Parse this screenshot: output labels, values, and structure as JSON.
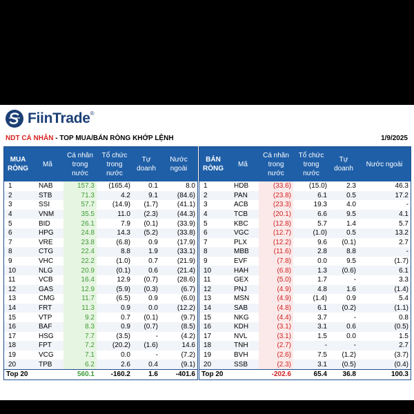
{
  "brand": {
    "name": "FiinTrade",
    "trademark": "®"
  },
  "header": {
    "subtitle_red": "NDT CÁ NHÂN",
    "subtitle_rest": " - TOP MUA/BÁN RÒNG KHỚP LỆNH",
    "date": "1/9/2025"
  },
  "colors": {
    "header_blue": "#1f5fa8",
    "green": "#3e9a37",
    "red": "#d02020",
    "brand_navy": "#1b3f75"
  },
  "buy": {
    "headers": {
      "side": "MUA RÒNG",
      "code": "Mã",
      "individual": "Cá nhân trong nước",
      "institution": "Tổ chức trong nước",
      "proprietary": "Tự doanh",
      "foreign": "Nước ngoài"
    },
    "rows": [
      {
        "rank": "1",
        "code": "NAB",
        "individual": "157.3",
        "institution": "(165.4)",
        "proprietary": "0.1",
        "foreign": "8.0"
      },
      {
        "rank": "2",
        "code": "STB",
        "individual": "71.3",
        "institution": "4.2",
        "proprietary": "9.1",
        "foreign": "(84.6)"
      },
      {
        "rank": "3",
        "code": "SSI",
        "individual": "57.7",
        "institution": "(14.9)",
        "proprietary": "(1.7)",
        "foreign": "(41.1)"
      },
      {
        "rank": "4",
        "code": "VNM",
        "individual": "35.5",
        "institution": "11.0",
        "proprietary": "(2.3)",
        "foreign": "(44.3)"
      },
      {
        "rank": "5",
        "code": "BID",
        "individual": "26.1",
        "institution": "7.9",
        "proprietary": "(0.1)",
        "foreign": "(33.9)"
      },
      {
        "rank": "6",
        "code": "HPG",
        "individual": "24.8",
        "institution": "14.3",
        "proprietary": "(5.2)",
        "foreign": "(33.8)"
      },
      {
        "rank": "7",
        "code": "VRE",
        "individual": "23.8",
        "institution": "(6.8)",
        "proprietary": "0.9",
        "foreign": "(17.9)"
      },
      {
        "rank": "8",
        "code": "CTG",
        "individual": "22.4",
        "institution": "8.8",
        "proprietary": "1.9",
        "foreign": "(33.1)"
      },
      {
        "rank": "9",
        "code": "VHC",
        "individual": "22.2",
        "institution": "(1.0)",
        "proprietary": "0.7",
        "foreign": "(21.9)"
      },
      {
        "rank": "10",
        "code": "NLG",
        "individual": "20.9",
        "institution": "(0.1)",
        "proprietary": "0.6",
        "foreign": "(21.4)"
      },
      {
        "rank": "11",
        "code": "VCB",
        "individual": "16.4",
        "institution": "12.9",
        "proprietary": "(0.7)",
        "foreign": "(28.6)"
      },
      {
        "rank": "12",
        "code": "GAS",
        "individual": "12.9",
        "institution": "(5.9)",
        "proprietary": "(0.3)",
        "foreign": "(6.7)"
      },
      {
        "rank": "13",
        "code": "CMG",
        "individual": "11.7",
        "institution": "(6.5)",
        "proprietary": "0.9",
        "foreign": "(6.0)"
      },
      {
        "rank": "14",
        "code": "FRT",
        "individual": "11.3",
        "institution": "0.9",
        "proprietary": "0.0",
        "foreign": "(12.2)"
      },
      {
        "rank": "15",
        "code": "VTP",
        "individual": "9.2",
        "institution": "0.7",
        "proprietary": "(0.1)",
        "foreign": "(9.7)"
      },
      {
        "rank": "16",
        "code": "BAF",
        "individual": "8.3",
        "institution": "0.9",
        "proprietary": "(0.7)",
        "foreign": "(8.5)"
      },
      {
        "rank": "17",
        "code": "HSG",
        "individual": "7.7",
        "institution": "(3.5)",
        "proprietary": "-",
        "foreign": "(4.2)"
      },
      {
        "rank": "18",
        "code": "FPT",
        "individual": "7.2",
        "institution": "(20.2)",
        "proprietary": "(1.6)",
        "foreign": "14.6"
      },
      {
        "rank": "19",
        "code": "VCG",
        "individual": "7.1",
        "institution": "0.0",
        "proprietary": "-",
        "foreign": "(7.2)"
      },
      {
        "rank": "20",
        "code": "TPB",
        "individual": "6.2",
        "institution": "2.6",
        "proprietary": "0.4",
        "foreign": "(9.1)"
      }
    ],
    "total": {
      "label": "Top 20",
      "individual": "560.1",
      "institution": "-160.2",
      "proprietary": "1.6",
      "foreign": "-401.6"
    }
  },
  "sell": {
    "headers": {
      "side": "BÁN RÒNG",
      "code": "Mã",
      "individual": "Cá nhân trong nước",
      "institution": "Tổ chức trong nước",
      "proprietary": "Tự doanh",
      "foreign": "Nước ngoài"
    },
    "rows": [
      {
        "rank": "1",
        "code": "HDB",
        "individual": "(33.6)",
        "institution": "(15.0)",
        "proprietary": "2.3",
        "foreign": "46.3"
      },
      {
        "rank": "2",
        "code": "PAN",
        "individual": "(23.8)",
        "institution": "6.1",
        "proprietary": "0.5",
        "foreign": "17.2"
      },
      {
        "rank": "3",
        "code": "ACB",
        "individual": "(23.3)",
        "institution": "19.3",
        "proprietary": "4.0",
        "foreign": "-"
      },
      {
        "rank": "4",
        "code": "TCB",
        "individual": "(20.1)",
        "institution": "6.6",
        "proprietary": "9.5",
        "foreign": "4.1"
      },
      {
        "rank": "5",
        "code": "KBC",
        "individual": "(12.8)",
        "institution": "5.7",
        "proprietary": "1.4",
        "foreign": "5.7"
      },
      {
        "rank": "6",
        "code": "VGC",
        "individual": "(12.7)",
        "institution": "(1.0)",
        "proprietary": "0.5",
        "foreign": "13.2"
      },
      {
        "rank": "7",
        "code": "PLX",
        "individual": "(12.2)",
        "institution": "9.6",
        "proprietary": "(0.1)",
        "foreign": "2.7"
      },
      {
        "rank": "8",
        "code": "MBB",
        "individual": "(11.6)",
        "institution": "2.8",
        "proprietary": "8.8",
        "foreign": "-"
      },
      {
        "rank": "9",
        "code": "EVF",
        "individual": "(7.8)",
        "institution": "0.0",
        "proprietary": "9.5",
        "foreign": "(1.7)"
      },
      {
        "rank": "10",
        "code": "HAH",
        "individual": "(6.8)",
        "institution": "1.3",
        "proprietary": "(0.6)",
        "foreign": "6.1"
      },
      {
        "rank": "11",
        "code": "GEX",
        "individual": "(5.0)",
        "institution": "1.7",
        "proprietary": "-",
        "foreign": "3.3"
      },
      {
        "rank": "12",
        "code": "PNJ",
        "individual": "(4.9)",
        "institution": "4.8",
        "proprietary": "1.6",
        "foreign": "(1.4)"
      },
      {
        "rank": "13",
        "code": "MSN",
        "individual": "(4.9)",
        "institution": "(1.4)",
        "proprietary": "0.9",
        "foreign": "5.4"
      },
      {
        "rank": "14",
        "code": "SAB",
        "individual": "(4.8)",
        "institution": "6.1",
        "proprietary": "(0.2)",
        "foreign": "(1.1)"
      },
      {
        "rank": "15",
        "code": "NKG",
        "individual": "(4.4)",
        "institution": "3.7",
        "proprietary": "-",
        "foreign": "0.8"
      },
      {
        "rank": "16",
        "code": "KDH",
        "individual": "(3.1)",
        "institution": "3.1",
        "proprietary": "0.6",
        "foreign": "(0.5)"
      },
      {
        "rank": "17",
        "code": "NVL",
        "individual": "(3.1)",
        "institution": "1.5",
        "proprietary": "0.0",
        "foreign": "1.5"
      },
      {
        "rank": "18",
        "code": "TNH",
        "individual": "(2.7)",
        "institution": "-",
        "proprietary": "-",
        "foreign": "2.7"
      },
      {
        "rank": "19",
        "code": "BVH",
        "individual": "(2.6)",
        "institution": "7.5",
        "proprietary": "(1.2)",
        "foreign": "(3.7)"
      },
      {
        "rank": "20",
        "code": "SSB",
        "individual": "(2.3)",
        "institution": "3.1",
        "proprietary": "(0.5)",
        "foreign": "(0.4)"
      }
    ],
    "total": {
      "label": "Top 20",
      "individual": "-202.6",
      "institution": "65.4",
      "proprietary": "36.8",
      "foreign": "100.3"
    }
  }
}
